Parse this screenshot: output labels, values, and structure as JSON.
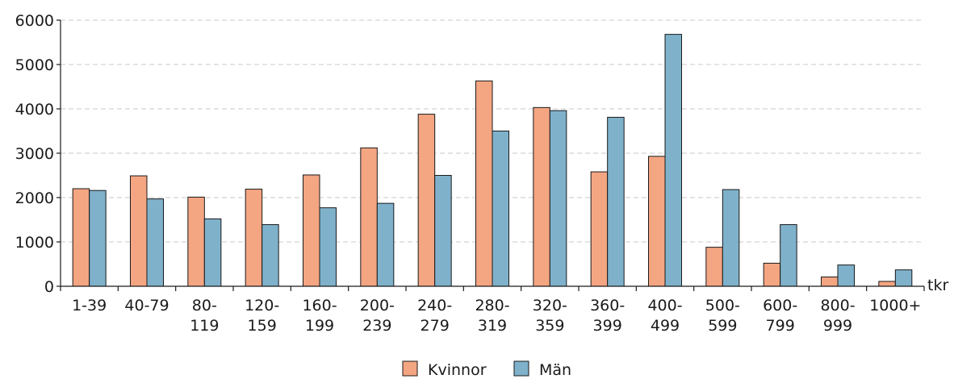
{
  "chart_data": {
    "type": "bar",
    "categories": [
      [
        "1-39"
      ],
      [
        "40-79"
      ],
      [
        "80-",
        "119"
      ],
      [
        "120-",
        "159"
      ],
      [
        "160-",
        "199"
      ],
      [
        "200-",
        "239"
      ],
      [
        "240-",
        "279"
      ],
      [
        "280-",
        "319"
      ],
      [
        "320-",
        "359"
      ],
      [
        "360-",
        "399"
      ],
      [
        "400-",
        "499"
      ],
      [
        "500-",
        "599"
      ],
      [
        "600-",
        "799"
      ],
      [
        "800-",
        "999"
      ],
      [
        "1000+"
      ]
    ],
    "series": [
      {
        "name": "Kvinnor",
        "color": "#F4A582",
        "values": [
          2200,
          2490,
          2010,
          2190,
          2510,
          3120,
          3880,
          4630,
          4030,
          2580,
          2930,
          880,
          520,
          210,
          110
        ]
      },
      {
        "name": "Män",
        "color": "#7FB1CB",
        "values": [
          2160,
          1970,
          1520,
          1390,
          1770,
          1870,
          2500,
          3500,
          3960,
          3810,
          5680,
          2180,
          1390,
          480,
          370
        ]
      }
    ],
    "xlabel": "tkr",
    "ylabel": "",
    "ylim": [
      0,
      6000
    ],
    "yticks": [
      0,
      1000,
      2000,
      3000,
      4000,
      5000,
      6000
    ],
    "grid": true,
    "legend_position": "bottom-center"
  }
}
